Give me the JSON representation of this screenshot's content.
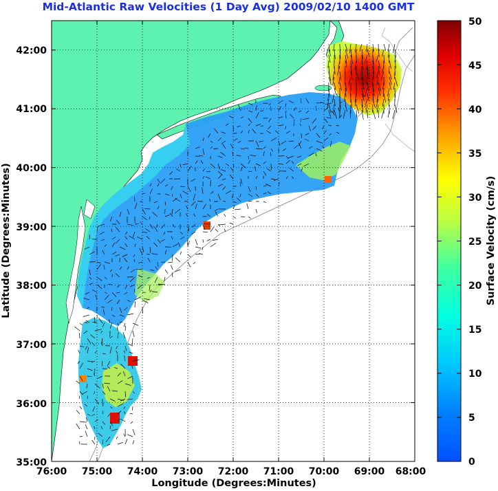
{
  "title": "Mid-Atlantic Raw Velocities (1 Day Avg) 2009/02/10 1400 GMT",
  "map": {
    "xlabel": "Longitude (Degrees:Minutes)",
    "ylabel": "Latitude (Degrees:Minutes)",
    "lon_ticks": [
      "76:00",
      "75:00",
      "74:00",
      "73:00",
      "72:00",
      "71:00",
      "70:00",
      "69:00",
      "68:00"
    ],
    "lat_ticks": [
      "42:00",
      "41:00",
      "40:00",
      "39:00",
      "38:00",
      "37:00",
      "36:00",
      "35:00"
    ],
    "lon_range": [
      -76,
      -68
    ],
    "lat_range": [
      35,
      42.5
    ],
    "land_color": "#5ef2b0",
    "grid": "dotted"
  },
  "colorbar": {
    "label": "Surface Velocity (cm/s)",
    "ticks": [
      "0",
      "5",
      "10",
      "15",
      "20",
      "25",
      "30",
      "35",
      "40",
      "45",
      "50"
    ],
    "range": [
      0,
      50
    ],
    "colormap": "jet"
  }
}
